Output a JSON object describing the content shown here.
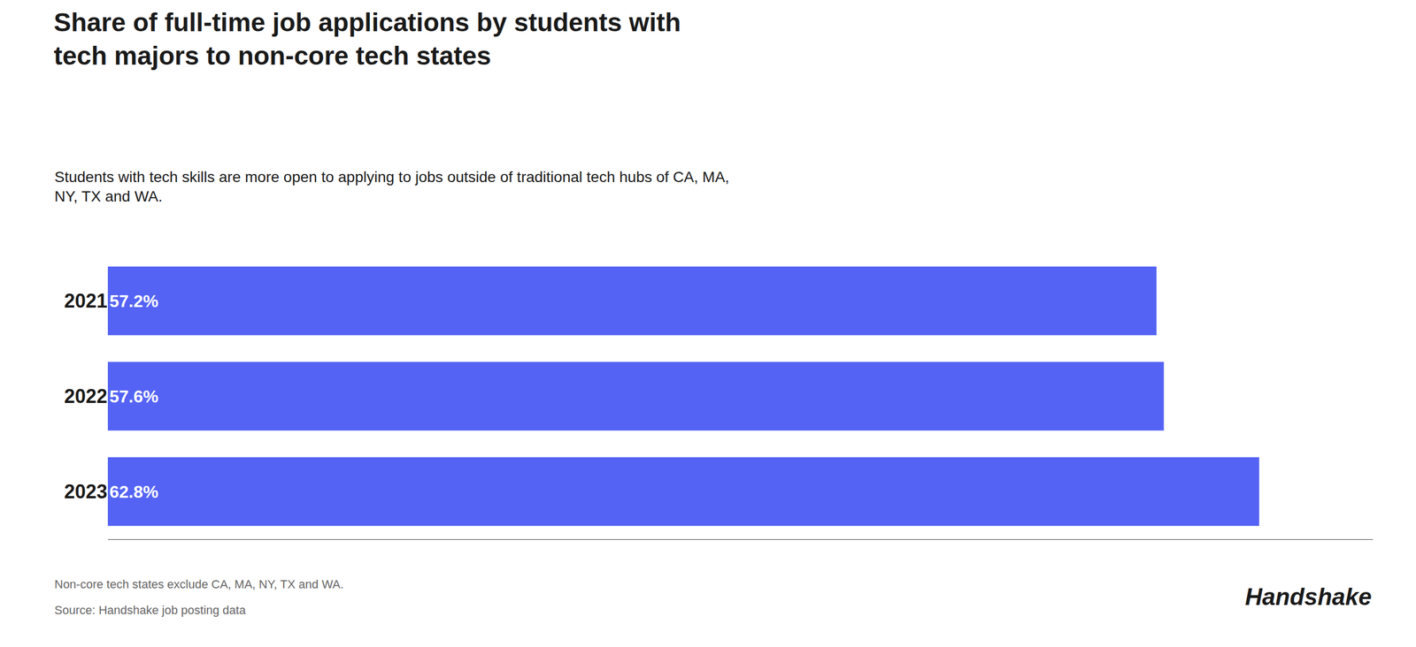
{
  "chart_data": {
    "type": "bar",
    "orientation": "horizontal",
    "title": "Share of full-time job applications by students with\ntech majors to non-core tech states",
    "subtitle": "Students with tech skills are more open to applying to jobs outside of traditional tech hubs of CA, MA,\nNY, TX and WA.",
    "annotations": [
      "Non-core tech states exclude CA, MA, NY, TX and WA.",
      "Source: Handshake job posting data",
      "Handshake"
    ],
    "categories": [
      "2021",
      "2022",
      "2023"
    ],
    "values": [
      57.2,
      57.6,
      62.8
    ],
    "value_labels": [
      "57.2%",
      "57.6%",
      "62.8%"
    ],
    "data_labels": true,
    "color": "#5563F5",
    "xlim": [
      0,
      69
    ],
    "tick_labels": "y",
    "grid": false
  }
}
